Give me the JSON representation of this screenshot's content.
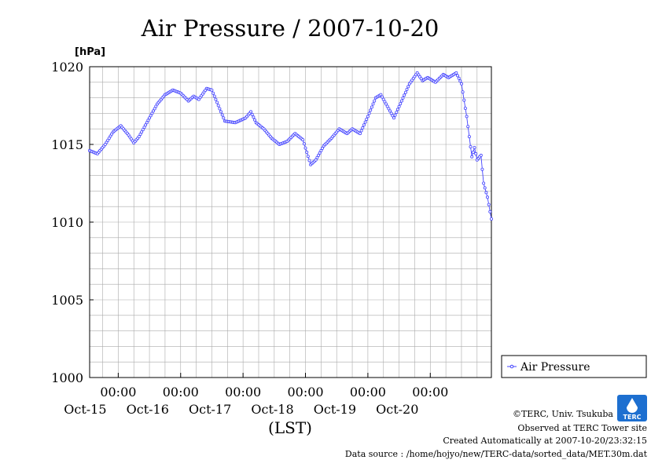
{
  "colors": {
    "series": "#4444ff",
    "grid": "#aaaaaa",
    "axis": "#000000",
    "logo": "#1d6fd0"
  },
  "chart_data": {
    "type": "line",
    "title": "Air Pressure / 2007-10-20",
    "ylabel": "[hPa]",
    "xlabel": "(LST)",
    "ylim": [
      1000,
      1020
    ],
    "yticks": [
      "1000",
      "1005",
      "1010",
      "1015",
      "1020"
    ],
    "xlim": [
      "2007-10-14 13:00",
      "2007-10-20 23:30"
    ],
    "xticks": [
      {
        "time": "00:00",
        "date": "Oct-15"
      },
      {
        "time": "00:00",
        "date": "Oct-16"
      },
      {
        "time": "00:00",
        "date": "Oct-17"
      },
      {
        "time": "00:00",
        "date": "Oct-18"
      },
      {
        "time": "00:00",
        "date": "Oct-19"
      },
      {
        "time": "00:00",
        "date": "Oct-20"
      }
    ],
    "grid": true,
    "legend": "right",
    "series": [
      {
        "name": "Air Pressure",
        "points": [
          [
            "2007-10-14 13:00",
            1014.6
          ],
          [
            "2007-10-14 16:00",
            1014.4
          ],
          [
            "2007-10-14 19:00",
            1015.0
          ],
          [
            "2007-10-14 22:00",
            1015.8
          ],
          [
            "2007-10-15 01:00",
            1016.2
          ],
          [
            "2007-10-15 04:00",
            1015.6
          ],
          [
            "2007-10-15 06:00",
            1015.1
          ],
          [
            "2007-10-15 08:00",
            1015.5
          ],
          [
            "2007-10-15 12:00",
            1016.7
          ],
          [
            "2007-10-15 15:00",
            1017.6
          ],
          [
            "2007-10-15 18:00",
            1018.2
          ],
          [
            "2007-10-15 21:00",
            1018.5
          ],
          [
            "2007-10-16 00:00",
            1018.3
          ],
          [
            "2007-10-16 03:00",
            1017.8
          ],
          [
            "2007-10-16 05:00",
            1018.1
          ],
          [
            "2007-10-16 07:00",
            1017.9
          ],
          [
            "2007-10-16 10:00",
            1018.6
          ],
          [
            "2007-10-16 12:00",
            1018.5
          ],
          [
            "2007-10-16 15:00",
            1017.3
          ],
          [
            "2007-10-16 17:00",
            1016.5
          ],
          [
            "2007-10-16 21:00",
            1016.4
          ],
          [
            "2007-10-17 01:00",
            1016.7
          ],
          [
            "2007-10-17 03:00",
            1017.1
          ],
          [
            "2007-10-17 05:00",
            1016.4
          ],
          [
            "2007-10-17 08:00",
            1016.0
          ],
          [
            "2007-10-17 11:00",
            1015.4
          ],
          [
            "2007-10-17 14:00",
            1015.0
          ],
          [
            "2007-10-17 17:00",
            1015.2
          ],
          [
            "2007-10-17 20:00",
            1015.7
          ],
          [
            "2007-10-17 23:00",
            1015.3
          ],
          [
            "2007-10-18 02:00",
            1013.7
          ],
          [
            "2007-10-18 04:00",
            1014.0
          ],
          [
            "2007-10-18 07:00",
            1014.9
          ],
          [
            "2007-10-18 10:00",
            1015.4
          ],
          [
            "2007-10-18 13:00",
            1016.0
          ],
          [
            "2007-10-18 16:00",
            1015.7
          ],
          [
            "2007-10-18 18:00",
            1016.0
          ],
          [
            "2007-10-18 21:00",
            1015.7
          ],
          [
            "2007-10-19 00:00",
            1016.8
          ],
          [
            "2007-10-19 03:00",
            1018.0
          ],
          [
            "2007-10-19 05:00",
            1018.2
          ],
          [
            "2007-10-19 08:00",
            1017.3
          ],
          [
            "2007-10-19 10:00",
            1016.7
          ],
          [
            "2007-10-19 13:00",
            1017.8
          ],
          [
            "2007-10-19 16:00",
            1018.9
          ],
          [
            "2007-10-19 19:00",
            1019.6
          ],
          [
            "2007-10-19 21:00",
            1019.1
          ],
          [
            "2007-10-19 23:00",
            1019.3
          ],
          [
            "2007-10-20 02:00",
            1019.0
          ],
          [
            "2007-10-20 05:00",
            1019.5
          ],
          [
            "2007-10-20 07:00",
            1019.3
          ],
          [
            "2007-10-20 10:00",
            1019.6
          ],
          [
            "2007-10-20 12:00",
            1018.9
          ],
          [
            "2007-10-20 14:00",
            1016.8
          ],
          [
            "2007-10-20 16:00",
            1014.2
          ],
          [
            "2007-10-20 17:00",
            1014.8
          ],
          [
            "2007-10-20 18:00",
            1014.0
          ],
          [
            "2007-10-20 19:30",
            1014.3
          ],
          [
            "2007-10-20 20:30",
            1012.5
          ],
          [
            "2007-10-20 22:00",
            1011.6
          ],
          [
            "2007-10-20 23:30",
            1010.2
          ]
        ]
      }
    ]
  },
  "footer": {
    "copyright": "©TERC, Univ. Tsukuba",
    "observed": "Observed at TERC Tower site",
    "created": "Created Automatically at 2007-10-20/23:32:15",
    "source": "Data source : /home/hojyo/new/TERC-data/sorted_data/MET.30m.dat"
  },
  "logo": {
    "text": "TERC"
  }
}
